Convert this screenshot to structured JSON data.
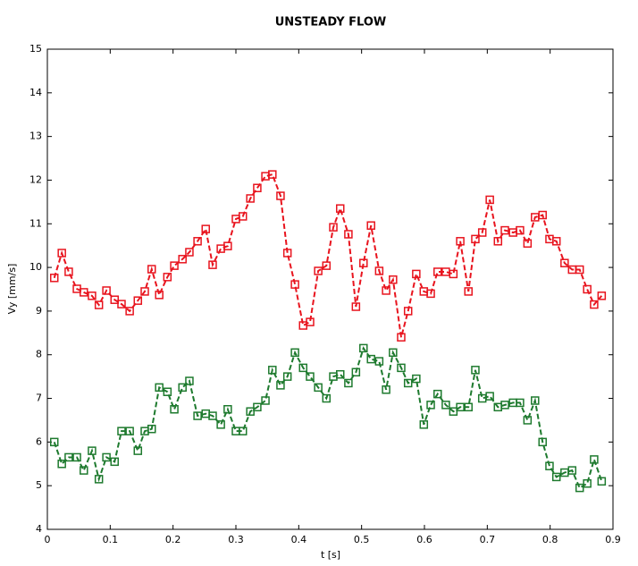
{
  "chart_data": {
    "type": "line",
    "title": "UNSTEADY FLOW",
    "x_label": "t [s]",
    "y_label": "Vy [mm/s]",
    "x": [
      0.011,
      0.023,
      0.034,
      0.047,
      0.058,
      0.071,
      0.082,
      0.094,
      0.107,
      0.118,
      0.131,
      0.144,
      0.155,
      0.166,
      0.178,
      0.191,
      0.202,
      0.215,
      0.226,
      0.239,
      0.252,
      0.263,
      0.276,
      0.287,
      0.3,
      0.311,
      0.323,
      0.334,
      0.347,
      0.358,
      0.371,
      0.382,
      0.394,
      0.407,
      0.418,
      0.431,
      0.444,
      0.455,
      0.466,
      0.479,
      0.491,
      0.503,
      0.515,
      0.528,
      0.539,
      0.55,
      0.563,
      0.574,
      0.587,
      0.599,
      0.61,
      0.621,
      0.634,
      0.646,
      0.657,
      0.67,
      0.681,
      0.692,
      0.704,
      0.717,
      0.728,
      0.741,
      0.752,
      0.764,
      0.776,
      0.788,
      0.799,
      0.81,
      0.823,
      0.835,
      0.847,
      0.859,
      0.87,
      0.882
    ],
    "series": [
      {
        "color": "#e8141e",
        "values": [
          9.76,
          10.33,
          9.9,
          9.51,
          9.43,
          9.35,
          9.14,
          9.47,
          9.26,
          9.16,
          9.0,
          9.24,
          9.45,
          9.96,
          9.37,
          9.78,
          10.04,
          10.19,
          10.35,
          10.6,
          10.88,
          10.06,
          10.43,
          10.49,
          11.11,
          11.17,
          11.58,
          11.82,
          12.09,
          12.13,
          11.64,
          10.33,
          9.61,
          8.67,
          8.75,
          9.92,
          10.04,
          10.92,
          11.35,
          10.76,
          9.1,
          10.1,
          10.96,
          9.92,
          9.47,
          9.72,
          8.4,
          9.0,
          9.85,
          9.45,
          9.4,
          9.9,
          9.9,
          9.85,
          10.6,
          9.45,
          10.65,
          10.8,
          11.55,
          10.6,
          10.85,
          10.8,
          10.85,
          10.55,
          11.15,
          11.2,
          10.65,
          10.6,
          10.1,
          9.95,
          9.95,
          9.5,
          9.15,
          9.35
        ]
      },
      {
        "color": "#1e7a2e",
        "values": [
          6.0,
          5.5,
          5.65,
          5.65,
          5.35,
          5.8,
          5.15,
          5.65,
          5.55,
          6.25,
          6.25,
          5.8,
          6.25,
          6.3,
          7.25,
          7.15,
          6.75,
          7.25,
          7.4,
          6.6,
          6.65,
          6.6,
          6.4,
          6.75,
          6.25,
          6.25,
          6.7,
          6.8,
          6.95,
          7.65,
          7.3,
          7.5,
          8.05,
          7.7,
          7.5,
          7.25,
          7.0,
          7.5,
          7.55,
          7.35,
          7.6,
          8.15,
          7.9,
          7.85,
          7.2,
          8.05,
          7.7,
          7.35,
          7.45,
          6.4,
          6.85,
          7.1,
          6.85,
          6.7,
          6.8,
          6.8,
          7.65,
          7.0,
          7.05,
          6.8,
          6.85,
          6.9,
          6.9,
          6.5,
          6.95,
          6.0,
          5.45,
          5.2,
          5.3,
          5.35,
          4.95,
          5.05,
          5.6,
          5.1
        ]
      }
    ],
    "xlim": [
      0,
      0.9
    ],
    "xticks": [
      0,
      0.1,
      0.2,
      0.3,
      0.4,
      0.5,
      0.6,
      0.7,
      0.8,
      0.9
    ],
    "ylim": [
      4,
      15
    ],
    "yticks": [
      4,
      5,
      6,
      7,
      8,
      9,
      10,
      11,
      12,
      13,
      14,
      15
    ],
    "line_style": "dashed",
    "marker": "square"
  }
}
